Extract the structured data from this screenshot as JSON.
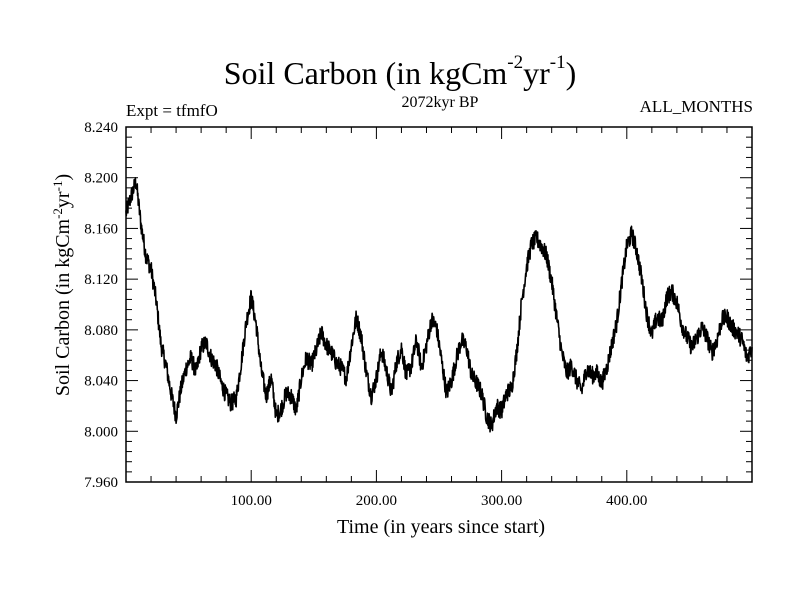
{
  "header": {
    "title_main": "Soil Carbon (in kgCm",
    "title_exp1": "-2",
    "title_mid": "yr",
    "title_exp2": "-1",
    "title_end": ")",
    "expt": "Expt = tfmfO",
    "epoch": "2072kyr BP",
    "months": "ALL_MONTHS"
  },
  "colors": {
    "line": "#000000",
    "frame": "#000000",
    "background": "#ffffff"
  },
  "chart_data": {
    "type": "line",
    "title": "Soil Carbon (in kgCm-2yr-1)",
    "xlabel": "Time (in years since start)",
    "ylabel_main": "Soil Carbon (in kgCm",
    "ylabel_exp1": "-2",
    "ylabel_mid": "yr",
    "ylabel_exp2": "-1",
    "ylabel_end": ")",
    "xlim": [
      0,
      500
    ],
    "ylim": [
      7.96,
      8.24
    ],
    "x_ticks": [
      100,
      200,
      300,
      400
    ],
    "x_tick_labels": [
      "100.00",
      "200.00",
      "300.00",
      "400.00"
    ],
    "y_ticks": [
      7.96,
      8.0,
      8.04,
      8.08,
      8.12,
      8.16,
      8.2,
      8.24
    ],
    "y_tick_labels": [
      "7.960",
      "8.000",
      "8.040",
      "8.080",
      "8.120",
      "8.160",
      "8.200",
      "8.240"
    ],
    "noise_amplitude": 0.007,
    "series": [
      {
        "name": "Soil Carbon",
        "x": [
          0,
          4,
          8,
          12,
          16,
          20,
          24,
          28,
          32,
          36,
          40,
          44,
          48,
          52,
          56,
          60,
          64,
          68,
          72,
          76,
          80,
          84,
          88,
          92,
          96,
          100,
          104,
          108,
          112,
          116,
          120,
          124,
          128,
          132,
          136,
          140,
          144,
          148,
          152,
          156,
          160,
          164,
          168,
          172,
          176,
          180,
          184,
          188,
          192,
          196,
          200,
          204,
          208,
          212,
          216,
          220,
          224,
          228,
          232,
          236,
          240,
          244,
          248,
          252,
          256,
          260,
          264,
          268,
          272,
          276,
          280,
          284,
          288,
          292,
          296,
          300,
          304,
          308,
          312,
          316,
          320,
          324,
          328,
          332,
          336,
          340,
          344,
          348,
          352,
          356,
          360,
          364,
          368,
          372,
          376,
          380,
          384,
          388,
          392,
          396,
          400,
          404,
          408,
          412,
          416,
          420,
          424,
          428,
          432,
          436,
          440,
          444,
          448,
          452,
          456,
          460,
          464,
          468,
          472,
          476,
          480,
          484,
          488,
          492,
          496,
          500
        ],
        "values": [
          8.172,
          8.185,
          8.197,
          8.163,
          8.138,
          8.128,
          8.104,
          8.068,
          8.052,
          8.03,
          8.012,
          8.034,
          8.05,
          8.058,
          8.046,
          8.066,
          8.07,
          8.058,
          8.052,
          8.038,
          8.028,
          8.022,
          8.026,
          8.054,
          8.086,
          8.106,
          8.084,
          8.048,
          8.028,
          8.042,
          8.012,
          8.018,
          8.03,
          8.028,
          8.016,
          8.042,
          8.058,
          8.052,
          8.064,
          8.078,
          8.068,
          8.062,
          8.054,
          8.05,
          8.042,
          8.068,
          8.09,
          8.074,
          8.046,
          8.028,
          8.042,
          8.064,
          8.048,
          8.03,
          8.054,
          8.066,
          8.044,
          8.052,
          8.072,
          8.05,
          8.068,
          8.088,
          8.082,
          8.056,
          8.03,
          8.04,
          8.058,
          8.072,
          8.066,
          8.044,
          8.038,
          8.03,
          8.012,
          8.004,
          8.02,
          8.016,
          8.03,
          8.034,
          8.062,
          8.102,
          8.13,
          8.148,
          8.152,
          8.146,
          8.138,
          8.118,
          8.09,
          8.062,
          8.046,
          8.052,
          8.04,
          8.032,
          8.05,
          8.044,
          8.046,
          8.038,
          8.05,
          8.068,
          8.086,
          8.118,
          8.146,
          8.156,
          8.142,
          8.12,
          8.092,
          8.076,
          8.09,
          8.086,
          8.106,
          8.11,
          8.102,
          8.084,
          8.074,
          8.066,
          8.074,
          8.082,
          8.074,
          8.062,
          8.072,
          8.088,
          8.09,
          8.082,
          8.078,
          8.072,
          8.058,
          8.066
        ]
      }
    ]
  }
}
